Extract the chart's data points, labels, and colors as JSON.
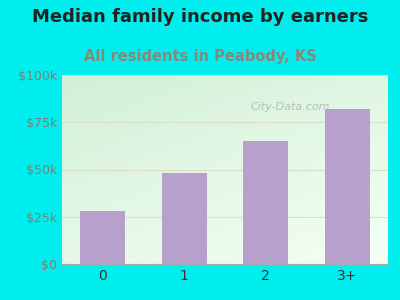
{
  "categories": [
    "0",
    "1",
    "2",
    "3+"
  ],
  "values": [
    28000,
    48000,
    65000,
    82000
  ],
  "bar_color": "#b8a0cc",
  "title": "Median family income by earners",
  "subtitle": "All residents in Peabody, KS",
  "title_color": "#222222",
  "subtitle_color": "#888877",
  "bg_color": "#00eeee",
  "plot_bg_top_left": "#d8eed8",
  "plot_bg_bottom": "#f5fff5",
  "plot_bg_right": "#ffffff",
  "ytick_color": "#8a7a6a",
  "xtick_color": "#333333",
  "ylim": [
    0,
    100000
  ],
  "yticks": [
    0,
    25000,
    50000,
    75000,
    100000
  ],
  "ytick_labels": [
    "$0",
    "$25k",
    "$50k",
    "$75k",
    "$100k"
  ],
  "watermark": "City-Data.com",
  "title_fontsize": 13,
  "subtitle_fontsize": 10.5,
  "grid_color": "#ddddcc"
}
